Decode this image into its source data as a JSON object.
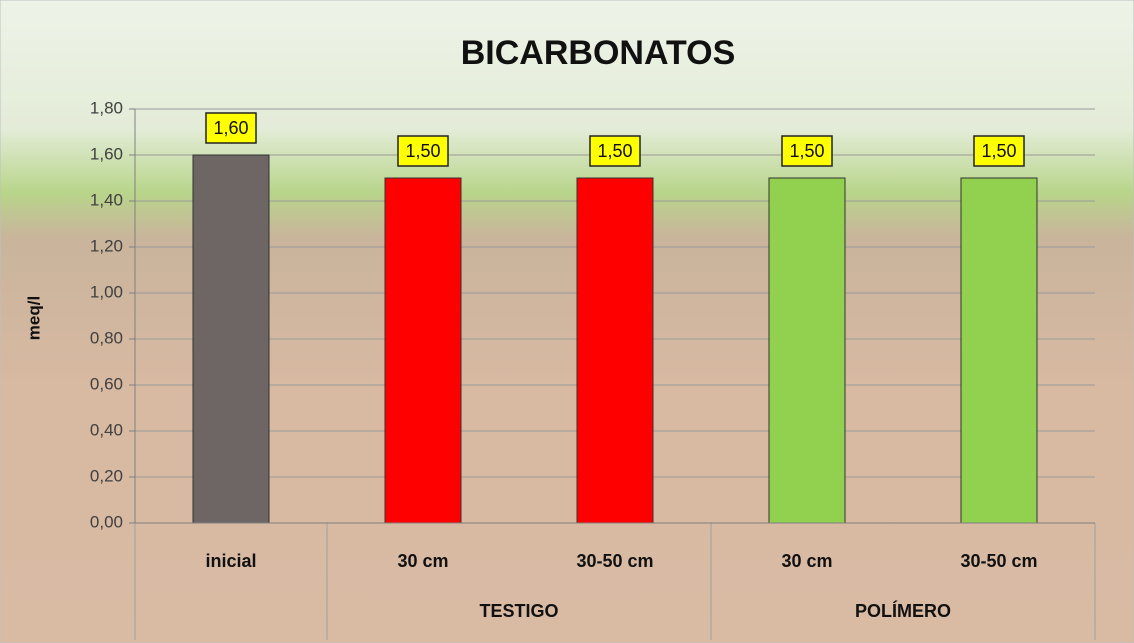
{
  "chart_data": {
    "type": "bar",
    "title": "BICARBONATOS",
    "y_label": "meq/l",
    "categories": [
      "inicial",
      "30 cm",
      "30-50 cm",
      "30 cm",
      "30-50 cm"
    ],
    "groups": [
      {
        "name": "TESTIGO",
        "members": [
          1,
          2
        ]
      },
      {
        "name": "POLÍMERO",
        "members": [
          3,
          4
        ]
      }
    ],
    "values": [
      1.6,
      1.5,
      1.5,
      1.5,
      1.5
    ],
    "value_labels": [
      "1,60",
      "1,50",
      "1,50",
      "1,50",
      "1,50"
    ],
    "colors": [
      "#6e6664",
      "#ff0000",
      "#ff0000",
      "#92d050",
      "#92d050"
    ],
    "ylim": [
      0,
      1.8
    ],
    "yticks": [
      {
        "value": 0,
        "label": "0,00"
      },
      {
        "value": 0.2,
        "label": "0,20"
      },
      {
        "value": 0.4,
        "label": "0,40"
      },
      {
        "value": 0.6,
        "label": "0,60"
      },
      {
        "value": 0.8,
        "label": "0,80"
      },
      {
        "value": 1.0,
        "label": "1,00"
      },
      {
        "value": 1.2,
        "label": "1,20"
      },
      {
        "value": 1.4,
        "label": "1,40"
      },
      {
        "value": 1.6,
        "label": "1,60"
      },
      {
        "value": 1.8,
        "label": "1,80"
      }
    ],
    "grid": true
  }
}
